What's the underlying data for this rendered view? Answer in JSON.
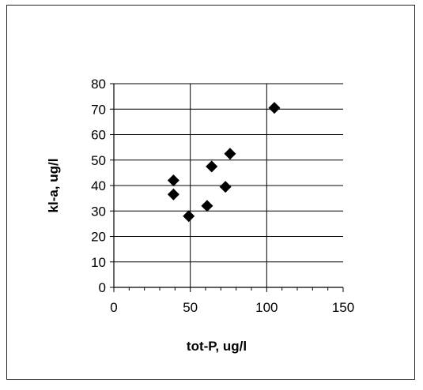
{
  "chart_data": {
    "type": "scatter",
    "title": "",
    "xlabel": "tot-P, ug/l",
    "ylabel": "kl-a, ug/l",
    "xlim": [
      0,
      150
    ],
    "ylim": [
      0,
      80
    ],
    "x_ticks": [
      0,
      50,
      100,
      150
    ],
    "y_ticks": [
      0,
      10,
      20,
      30,
      40,
      50,
      60,
      70,
      80
    ],
    "grid": "horizontal and vertical major gridlines",
    "legend": "none",
    "marker": "diamond",
    "marker_color": "#000000",
    "series": [
      {
        "points": [
          {
            "x": 39,
            "y": 42
          },
          {
            "x": 39,
            "y": 36.5
          },
          {
            "x": 49,
            "y": 28
          },
          {
            "x": 61,
            "y": 32
          },
          {
            "x": 64,
            "y": 47.5
          },
          {
            "x": 73,
            "y": 39.5
          },
          {
            "x": 76,
            "y": 52.5
          },
          {
            "x": 105,
            "y": 70.5
          }
        ]
      }
    ]
  }
}
